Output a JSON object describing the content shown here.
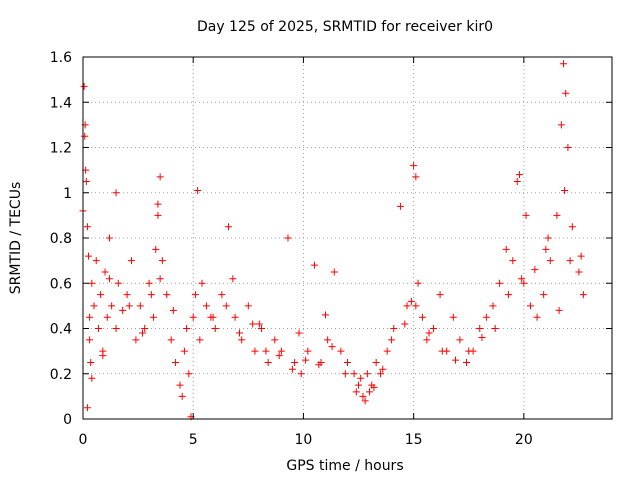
{
  "chart_data": {
    "type": "scatter",
    "title": "Day 125 of 2025, SRMTID for receiver kir0",
    "xlabel": "GPS time / hours",
    "ylabel": "SRMTID / TECUs",
    "xlim": [
      0,
      24
    ],
    "ylim": [
      0,
      1.6
    ],
    "xticks": [
      0,
      5,
      10,
      15,
      20
    ],
    "xtick_labels": [
      "0",
      "5",
      "10",
      "15",
      "20"
    ],
    "yticks": [
      0,
      0.2,
      0.4,
      0.6,
      0.8,
      1,
      1.2,
      1.4,
      1.6
    ],
    "ytick_labels": [
      "0",
      "0.2",
      "0.4",
      "0.6",
      "0.8",
      "1",
      "1.2",
      "1.4",
      "1.6"
    ],
    "grid": true,
    "marker": "+",
    "color": "#ff0000",
    "series": [
      {
        "name": "kir0",
        "x": [
          0.0,
          0.05,
          0.08,
          0.1,
          0.12,
          0.15,
          0.2,
          0.25,
          0.3,
          0.35,
          0.4,
          0.5,
          0.6,
          0.7,
          0.8,
          0.9,
          1.0,
          1.1,
          1.2,
          1.3,
          1.5,
          1.6,
          1.8,
          2.0,
          2.2,
          2.4,
          2.6,
          2.8,
          3.0,
          3.2,
          3.3,
          3.4,
          3.5,
          3.6,
          3.8,
          4.0,
          4.2,
          4.4,
          4.5,
          4.6,
          4.8,
          5.0,
          5.2,
          5.4,
          5.6,
          5.8,
          6.0,
          6.3,
          6.6,
          6.9,
          7.2,
          7.5,
          7.8,
          8.1,
          8.4,
          8.7,
          9.0,
          9.3,
          9.6,
          9.9,
          10.2,
          10.5,
          10.8,
          11.1,
          11.4,
          11.7,
          12.0,
          12.3,
          12.5,
          12.7,
          12.9,
          13.1,
          13.3,
          13.5,
          13.8,
          14.1,
          14.4,
          14.7,
          15.0,
          15.2,
          15.4,
          15.6,
          15.9,
          16.2,
          16.5,
          16.8,
          17.1,
          17.4,
          17.7,
          18.0,
          18.3,
          18.6,
          18.9,
          19.2,
          19.5,
          19.8,
          20.0,
          20.3,
          20.6,
          20.9,
          21.2,
          21.5,
          21.7,
          21.8,
          22.0,
          22.2,
          22.5,
          22.7,
          0.3,
          0.9,
          1.5,
          2.1,
          2.7,
          3.1,
          3.5,
          4.1,
          4.7,
          5.3,
          5.9,
          6.5,
          7.1,
          7.7,
          8.3,
          8.9,
          9.5,
          10.1,
          10.7,
          11.3,
          11.9,
          12.4,
          12.8,
          13.2,
          13.6,
          14.0,
          14.6,
          15.1,
          15.7,
          16.3,
          16.9,
          17.5,
          18.1,
          18.7,
          19.3,
          19.9,
          20.5,
          21.1,
          21.6,
          22.1,
          22.6,
          4.9,
          0.2,
          0.4,
          1.2,
          3.4,
          5.1,
          6.8,
          8.0,
          9.8,
          11.0,
          12.6,
          13.0,
          14.9,
          15.1,
          19.7,
          20.1,
          21.0,
          21.9,
          21.85
        ],
        "y": [
          0.92,
          1.47,
          1.25,
          1.3,
          1.1,
          1.05,
          0.85,
          0.72,
          0.45,
          0.25,
          0.6,
          0.5,
          0.7,
          0.4,
          0.55,
          0.3,
          0.65,
          0.45,
          0.8,
          0.5,
          1.0,
          0.6,
          0.48,
          0.55,
          0.7,
          0.35,
          0.5,
          0.4,
          0.6,
          0.45,
          0.75,
          0.9,
          1.07,
          0.7,
          0.55,
          0.35,
          0.25,
          0.15,
          0.1,
          0.3,
          0.2,
          0.45,
          1.01,
          0.6,
          0.5,
          0.45,
          0.4,
          0.55,
          0.85,
          0.45,
          0.35,
          0.5,
          0.3,
          0.4,
          0.25,
          0.35,
          0.3,
          0.8,
          0.25,
          0.2,
          0.3,
          0.68,
          0.25,
          0.35,
          0.65,
          0.3,
          0.25,
          0.2,
          0.15,
          0.1,
          0.2,
          0.15,
          0.25,
          0.2,
          0.3,
          0.4,
          0.94,
          0.5,
          1.12,
          0.6,
          0.45,
          0.35,
          0.4,
          0.55,
          0.3,
          0.45,
          0.35,
          0.25,
          0.3,
          0.4,
          0.45,
          0.5,
          0.6,
          0.75,
          0.7,
          1.08,
          0.6,
          0.5,
          0.45,
          0.55,
          0.7,
          0.9,
          1.3,
          1.57,
          1.2,
          0.85,
          0.65,
          0.55,
          0.35,
          0.28,
          0.4,
          0.5,
          0.38,
          0.55,
          0.62,
          0.48,
          0.4,
          0.35,
          0.45,
          0.5,
          0.38,
          0.42,
          0.3,
          0.28,
          0.22,
          0.26,
          0.24,
          0.32,
          0.2,
          0.12,
          0.08,
          0.14,
          0.22,
          0.35,
          0.42,
          0.5,
          0.38,
          0.3,
          0.26,
          0.3,
          0.36,
          0.4,
          0.55,
          0.62,
          0.66,
          0.8,
          0.48,
          0.7,
          0.72,
          0.01,
          0.05,
          0.18,
          0.62,
          0.95,
          0.55,
          0.62,
          0.42,
          0.38,
          0.46,
          0.18,
          0.12,
          0.52,
          1.07,
          1.05,
          0.9,
          0.75,
          1.44,
          1.01
        ]
      }
    ]
  }
}
